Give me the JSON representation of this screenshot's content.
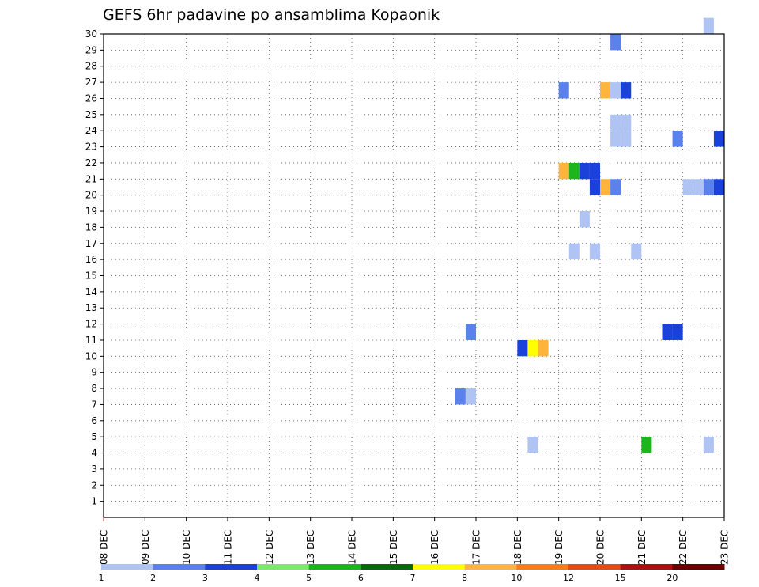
{
  "chart_data": {
    "type": "heatmap",
    "title": "GEFS 6hr padavine po ansamblima Kopaonik",
    "xlabel": "",
    "ylabel": "",
    "x_ticks": [
      "08 DEC",
      "09 DEC",
      "10 DEC",
      "11 DEC",
      "12 DEC",
      "13 DEC",
      "14 DEC",
      "15 DEC",
      "16 DEC",
      "17 DEC",
      "18 DEC",
      "19 DEC",
      "20 DEC",
      "21 DEC",
      "22 DEC",
      "23 DEC"
    ],
    "xlim_days": [
      0,
      15
    ],
    "y_ticks": [
      "1",
      "2",
      "3",
      "4",
      "5",
      "6",
      "7",
      "8",
      "9",
      "10",
      "11",
      "12",
      "13",
      "14",
      "15",
      "16",
      "17",
      "18",
      "19",
      "20",
      "21",
      "22",
      "23",
      "24",
      "25",
      "26",
      "27",
      "28",
      "29",
      "30"
    ],
    "ylim": [
      0,
      30
    ],
    "grid": true,
    "colorbar": {
      "labels": [
        "1",
        "2",
        "3",
        "4",
        "5",
        "6",
        "7",
        "8",
        "10",
        "12",
        "15",
        "20"
      ],
      "colors": [
        "#b0c4f4",
        "#5b82ec",
        "#1a42da",
        "#7ee86e",
        "#1eb41e",
        "#0a6a0a",
        "#ffff00",
        "#ffb43c",
        "#ff7a1e",
        "#e84a1a",
        "#b01010",
        "#6a0000"
      ]
    },
    "cells": [
      {
        "day": 14.5,
        "member": 30,
        "level": 0
      },
      {
        "day": 12.25,
        "member": 29,
        "level": 1
      },
      {
        "day": 11.0,
        "member": 26,
        "level": 1
      },
      {
        "day": 12.0,
        "member": 26,
        "level": 7
      },
      {
        "day": 12.25,
        "member": 26,
        "level": 0
      },
      {
        "day": 12.5,
        "member": 26,
        "level": 2
      },
      {
        "day": 12.25,
        "member": 24,
        "level": 0
      },
      {
        "day": 12.5,
        "member": 24,
        "level": 0
      },
      {
        "day": 12.25,
        "member": 23,
        "level": 0
      },
      {
        "day": 12.5,
        "member": 23,
        "level": 0
      },
      {
        "day": 13.75,
        "member": 23,
        "level": 1
      },
      {
        "day": 14.75,
        "member": 23,
        "level": 2
      },
      {
        "day": 11.0,
        "member": 21,
        "level": 7
      },
      {
        "day": 11.25,
        "member": 21,
        "level": 4
      },
      {
        "day": 11.5,
        "member": 21,
        "level": 2
      },
      {
        "day": 11.75,
        "member": 21,
        "level": 2
      },
      {
        "day": 11.75,
        "member": 20,
        "level": 2
      },
      {
        "day": 12.0,
        "member": 20,
        "level": 7
      },
      {
        "day": 12.25,
        "member": 20,
        "level": 1
      },
      {
        "day": 14.0,
        "member": 20,
        "level": 0
      },
      {
        "day": 14.25,
        "member": 20,
        "level": 0
      },
      {
        "day": 14.5,
        "member": 20,
        "level": 1
      },
      {
        "day": 14.75,
        "member": 20,
        "level": 2
      },
      {
        "day": 11.5,
        "member": 18,
        "level": 0
      },
      {
        "day": 11.25,
        "member": 16,
        "level": 0
      },
      {
        "day": 11.75,
        "member": 16,
        "level": 0
      },
      {
        "day": 12.75,
        "member": 16,
        "level": 0
      },
      {
        "day": 8.75,
        "member": 11,
        "level": 1
      },
      {
        "day": 13.5,
        "member": 11,
        "level": 2
      },
      {
        "day": 13.75,
        "member": 11,
        "level": 2
      },
      {
        "day": 10.0,
        "member": 10,
        "level": 2
      },
      {
        "day": 10.25,
        "member": 10,
        "level": 6
      },
      {
        "day": 10.5,
        "member": 10,
        "level": 7
      },
      {
        "day": 8.5,
        "member": 7,
        "level": 1
      },
      {
        "day": 8.75,
        "member": 7,
        "level": 0
      },
      {
        "day": 10.25,
        "member": 4,
        "level": 0
      },
      {
        "day": 13.0,
        "member": 4,
        "level": 4
      },
      {
        "day": 14.5,
        "member": 4,
        "level": 0
      }
    ]
  }
}
